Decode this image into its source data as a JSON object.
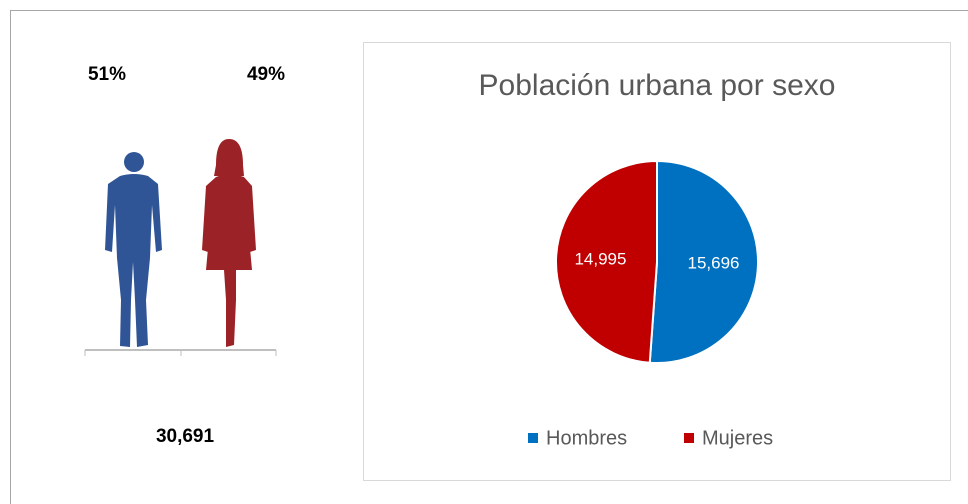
{
  "infographic": {
    "percentages": [
      51,
      49
    ],
    "percentage_labels": [
      "51%",
      "49%"
    ],
    "colors": [
      "#2f5597",
      "#9b2226"
    ],
    "total": 30691,
    "total_label": "30,691"
  },
  "chart_data": {
    "type": "pie",
    "title": "Población urbana por sexo",
    "categories": [
      "Hombres",
      "Mujeres"
    ],
    "values": [
      15696,
      14995
    ],
    "value_labels": [
      "15,696",
      "14,995"
    ],
    "colors": [
      "#0070c0",
      "#c00000"
    ],
    "legend": "bottom"
  }
}
